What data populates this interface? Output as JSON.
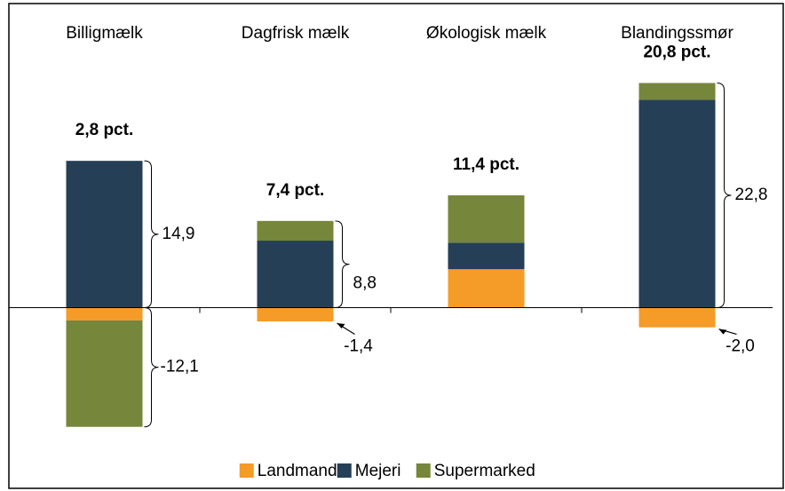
{
  "chart_data": {
    "type": "bar",
    "stacked": true,
    "categories": [
      "Billigmælk",
      "Dagfrisk mælk",
      "Økologisk mælk",
      "Blandingssmør"
    ],
    "series": [
      {
        "name": "Landmand",
        "color": "#f59b27",
        "values": [
          -1.3,
          -1.4,
          3.9,
          -2.0
        ]
      },
      {
        "name": "Mejeri",
        "color": "#243f56",
        "values": [
          14.9,
          6.8,
          2.7,
          21.1
        ]
      },
      {
        "name": "Supermarked",
        "color": "#76863a",
        "values": [
          -10.8,
          2.0,
          4.8,
          1.7
        ]
      }
    ],
    "total_labels": [
      "2,8 pct.",
      "7,4 pct.",
      "11,4 pct.",
      "20,8 pct."
    ],
    "range_labels": [
      [
        "14,9",
        "-12,1"
      ],
      [
        "8,8",
        "-1,4"
      ],
      [],
      [
        "22,8",
        "-2,0"
      ]
    ],
    "ylim": [
      -16,
      26
    ],
    "legend": "bottom"
  }
}
